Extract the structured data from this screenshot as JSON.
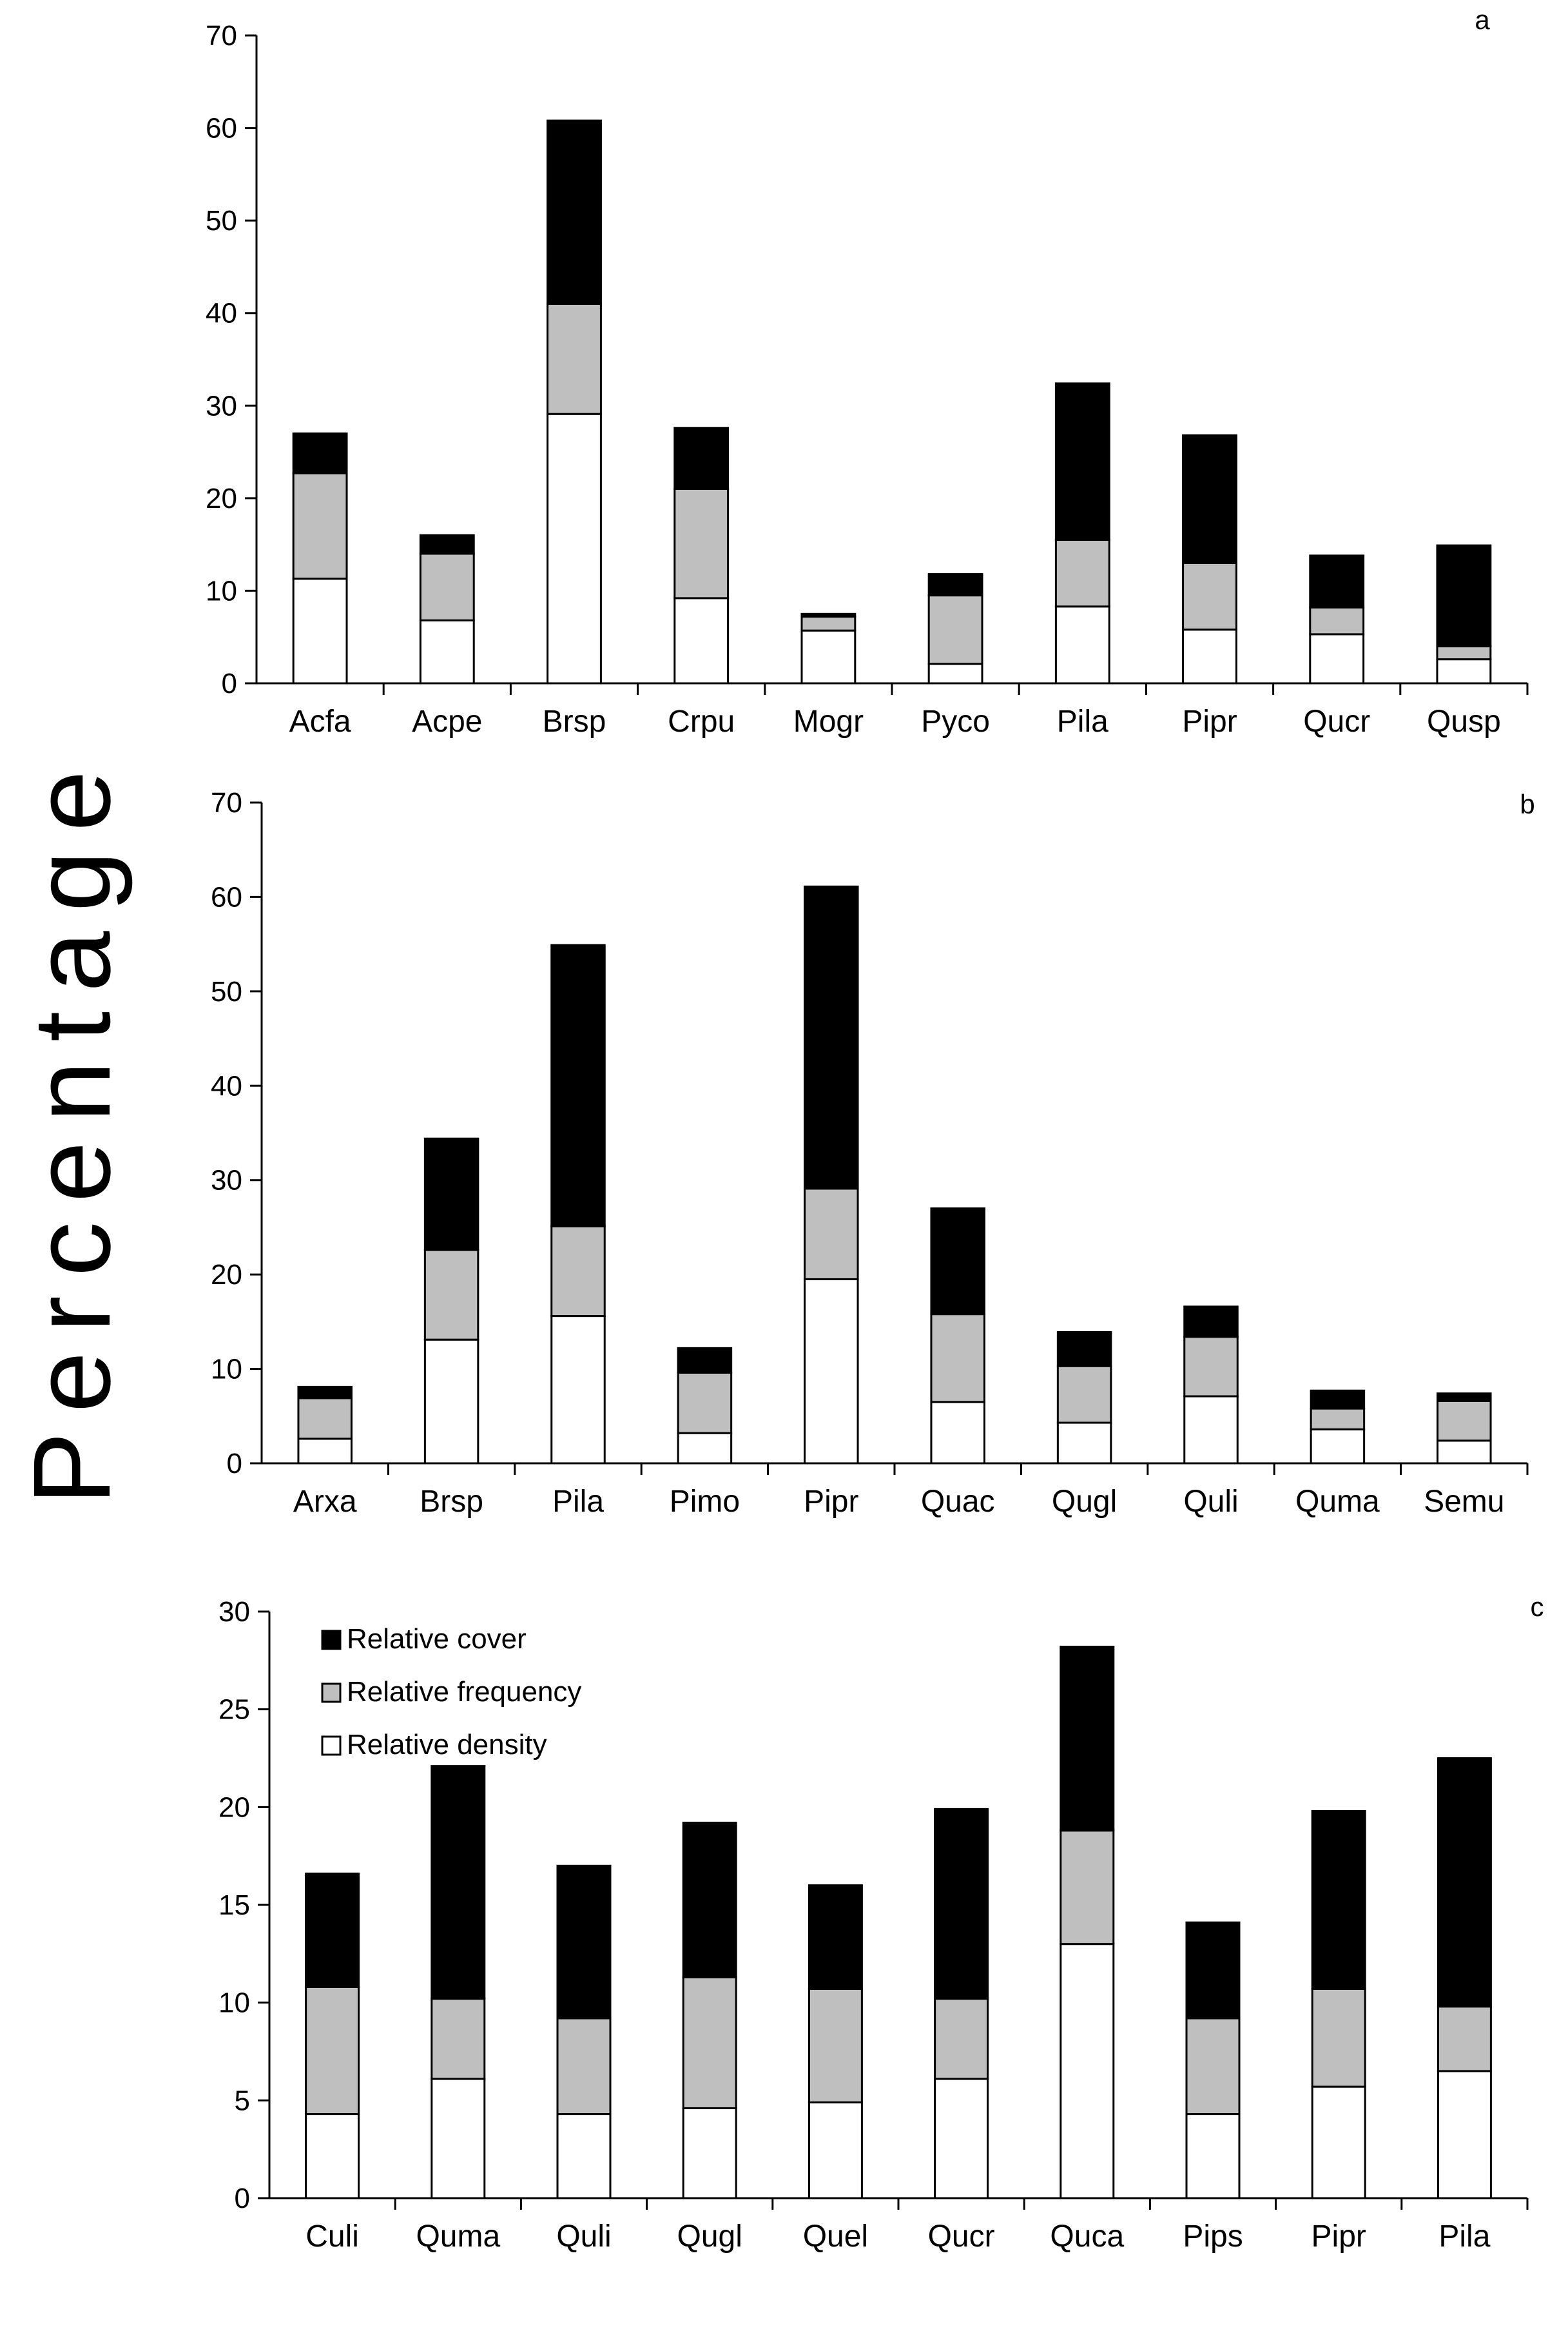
{
  "chart_data": {
    "type": "bar",
    "stacked": true,
    "ylabel": "Percentage",
    "colors": {
      "Relative density": "#ffffff",
      "Relative frequency": "#bfbfbf",
      "Relative cover": "#000000"
    },
    "legend": {
      "placement": "top-left of panel c",
      "entries": [
        "Relative cover",
        "Relative frequency",
        "Relative density"
      ]
    },
    "panels": [
      {
        "label": "a",
        "ylim": [
          0,
          70
        ],
        "yticks": [
          0,
          10,
          20,
          30,
          40,
          50,
          60,
          70
        ],
        "categories": [
          "Acfa",
          "Acpe",
          "Brsp",
          "Crpu",
          "Mogr",
          "Pyco",
          "Pila",
          "Pipr",
          "Qucr",
          "Qusp"
        ],
        "series": [
          {
            "name": "Relative density",
            "values": [
              11.3,
              6.8,
              29.1,
              9.2,
              5.7,
              2.1,
              8.3,
              5.8,
              5.3,
              2.6
            ]
          },
          {
            "name": "Relative frequency",
            "values": [
              11.4,
              7.2,
              11.9,
              11.8,
              1.5,
              7.4,
              7.2,
              7.2,
              2.9,
              1.4
            ]
          },
          {
            "name": "Relative cover",
            "values": [
              4.3,
              2.0,
              19.8,
              6.6,
              0.3,
              2.3,
              16.9,
              13.8,
              5.6,
              10.9
            ]
          }
        ]
      },
      {
        "label": "b",
        "ylim": [
          0,
          70
        ],
        "yticks": [
          0,
          10,
          20,
          30,
          40,
          50,
          60,
          70
        ],
        "categories": [
          "Arxa",
          "Brsp",
          "Pila",
          "Pimo",
          "Pipr",
          "Quac",
          "Qugl",
          "Quli",
          "Quma",
          "Semu"
        ],
        "series": [
          {
            "name": "Relative density",
            "values": [
              2.6,
              13.1,
              15.6,
              3.2,
              19.5,
              6.5,
              4.3,
              7.1,
              3.6,
              2.4
            ]
          },
          {
            "name": "Relative frequency",
            "values": [
              4.3,
              9.5,
              9.5,
              6.4,
              9.6,
              9.3,
              6.0,
              6.3,
              2.2,
              4.2
            ]
          },
          {
            "name": "Relative cover",
            "values": [
              1.2,
              11.8,
              29.8,
              2.6,
              32.0,
              11.2,
              3.6,
              3.2,
              1.9,
              0.8
            ]
          }
        ]
      },
      {
        "label": "c",
        "ylim": [
          0,
          30
        ],
        "yticks": [
          0,
          5,
          10,
          15,
          20,
          25,
          30
        ],
        "categories": [
          "Culi",
          "Quma",
          "Quli",
          "Qugl",
          "Quel",
          "Qucr",
          "Quca",
          "Pips",
          "Pipr",
          "Pila"
        ],
        "series": [
          {
            "name": "Relative density",
            "values": [
              4.3,
              6.1,
              4.3,
              4.6,
              4.9,
              6.1,
              13.0,
              4.3,
              5.7,
              6.5
            ]
          },
          {
            "name": "Relative frequency",
            "values": [
              6.5,
              4.1,
              4.9,
              6.7,
              5.8,
              4.1,
              5.8,
              4.9,
              5.0,
              3.3
            ]
          },
          {
            "name": "Relative cover",
            "values": [
              5.8,
              11.9,
              7.8,
              7.9,
              5.3,
              9.7,
              9.4,
              4.9,
              9.1,
              12.7
            ]
          }
        ]
      }
    ]
  }
}
